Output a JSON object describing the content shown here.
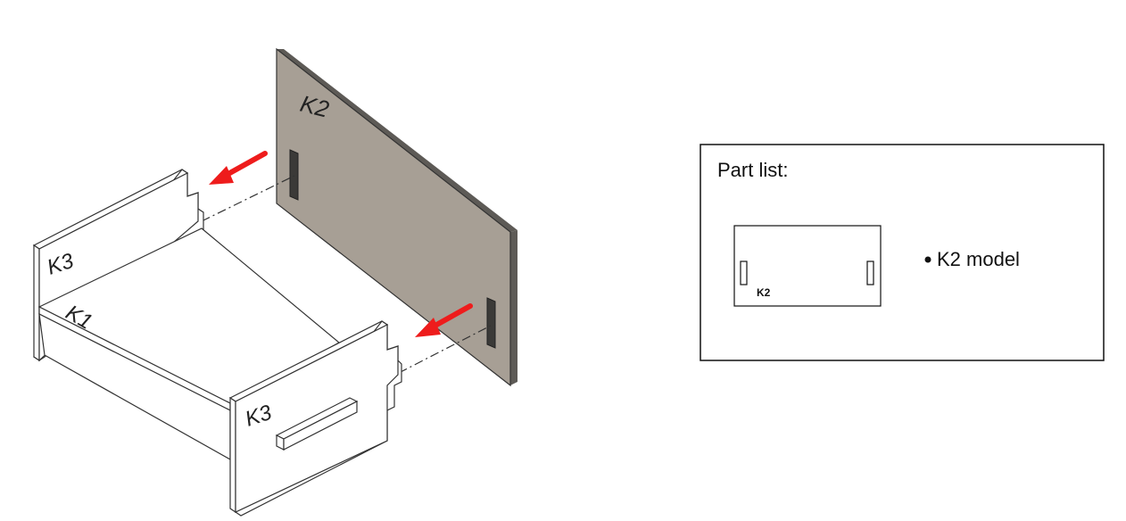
{
  "assembly": {
    "labels": {
      "k1": "K1",
      "k2": "K2",
      "k3_left": "K3",
      "k3_right": "K3"
    },
    "colors": {
      "panel_white": "#ffffff",
      "panel_k2": "#a79f95",
      "panel_k2_edge": "#5d5a56",
      "outline": "#333333",
      "arrow": "#ee1c1c"
    },
    "icons": {
      "insert_arrow": "red-arrow-icon"
    }
  },
  "part_list": {
    "title": "Part list:",
    "items": [
      {
        "label": "K2 model",
        "thumbnail_label": "K2"
      }
    ]
  }
}
